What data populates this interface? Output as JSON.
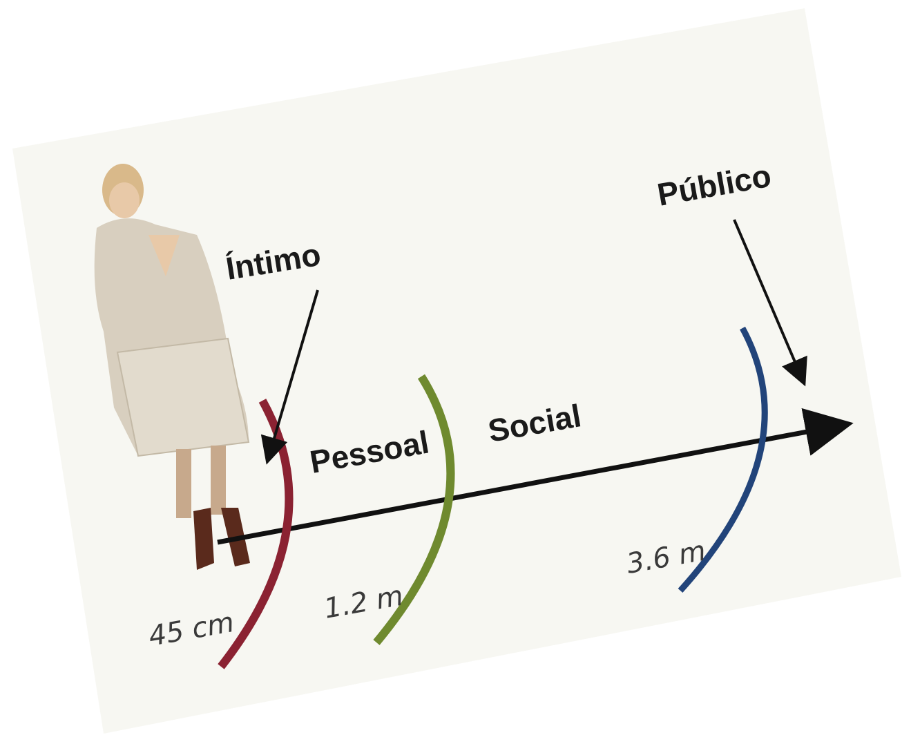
{
  "zones": [
    {
      "name": "Íntimo",
      "distance": "45 cm"
    },
    {
      "name": "Pessoal",
      "distance": "1.2 m"
    },
    {
      "name": "Social",
      "distance": "3.6 m"
    },
    {
      "name": "Público"
    }
  ]
}
